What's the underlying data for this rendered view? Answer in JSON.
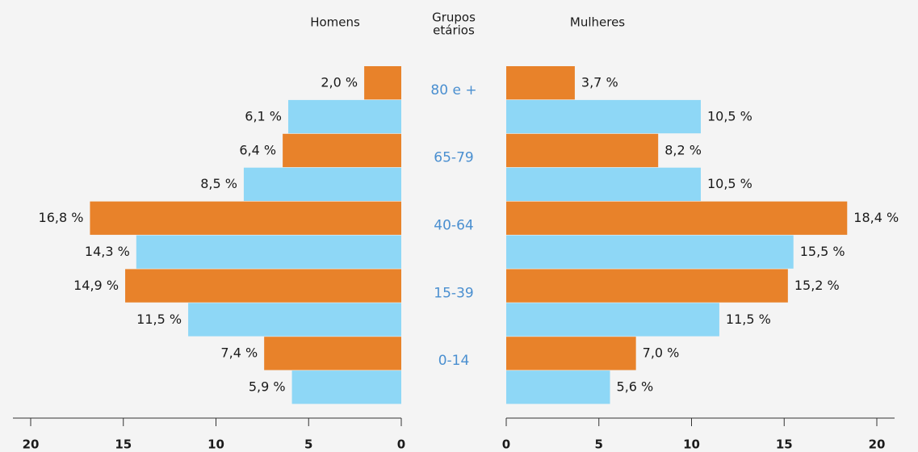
{
  "categories": [
    "80 e +",
    "65-79",
    "40-64",
    "15-39",
    "0-14"
  ],
  "category_label": [
    "Grupos",
    "etários"
  ],
  "chart_data": [
    {
      "type": "bar",
      "orientation": "horizontal",
      "x_reversed": true,
      "title": "Homens",
      "series": [
        {
          "color": "#e8822a",
          "values": [
            2.0,
            6.4,
            16.8,
            14.9,
            7.4
          ],
          "value_labels": [
            "2,0 %",
            "6,4 %",
            "16,8 %",
            "14,9 %",
            "7,4 %"
          ]
        },
        {
          "color": "#8ed7f6",
          "values": [
            6.1,
            8.5,
            14.3,
            11.5,
            5.9
          ],
          "value_labels": [
            "6,1 %",
            "8,5 %",
            "14,3 %",
            "11,5 %",
            "5,9 %"
          ]
        }
      ],
      "xlim": [
        0,
        20
      ],
      "xticks": [
        0,
        5,
        10,
        15,
        20
      ]
    },
    {
      "type": "bar",
      "orientation": "horizontal",
      "x_reversed": false,
      "title": "Mulheres",
      "series": [
        {
          "color": "#e8822a",
          "values": [
            3.7,
            8.2,
            18.4,
            15.2,
            7.0
          ],
          "value_labels": [
            "3,7 %",
            "8,2 %",
            "18,4 %",
            "15,2 %",
            "7,0 %"
          ]
        },
        {
          "color": "#8ed7f6",
          "values": [
            10.5,
            10.5,
            15.5,
            11.5,
            5.6
          ],
          "value_labels": [
            "10,5 %",
            "10,5 %",
            "15,5 %",
            "11,5 %",
            "5,6 %"
          ]
        }
      ],
      "xlim": [
        0,
        20
      ],
      "xticks": [
        0,
        5,
        10,
        15,
        20
      ]
    }
  ]
}
